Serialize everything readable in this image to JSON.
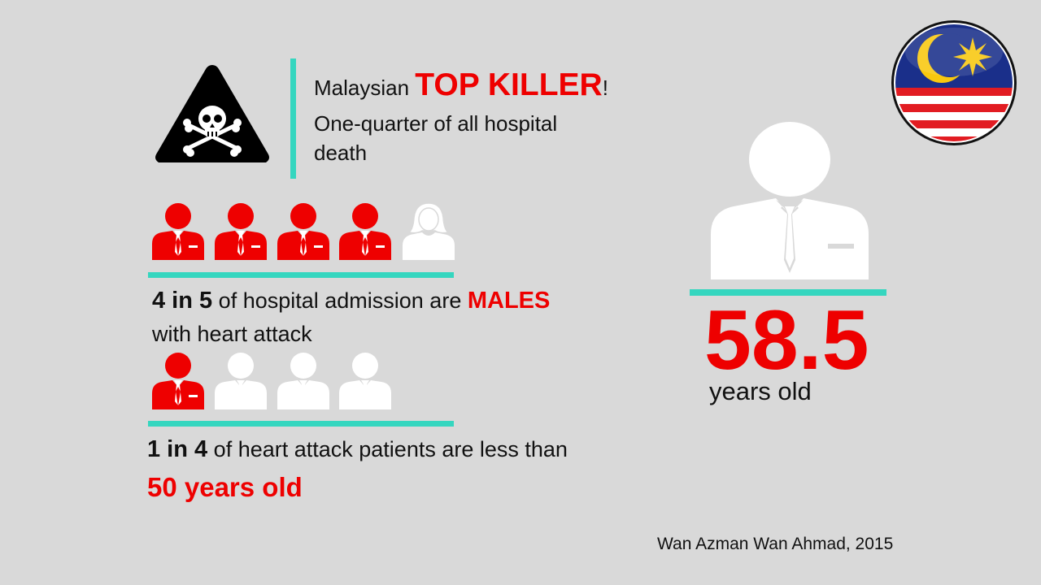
{
  "header": {
    "prefix": "Malaysian",
    "highlight": "TOP KILLER",
    "suffix": "!",
    "line2": "One-quarter of all hospital",
    "line3": "death"
  },
  "stat_males": {
    "number": "4 in 5",
    "text_before_highlight": "of hospital admission are",
    "highlight": "MALES",
    "line2": "with heart attack",
    "highlighted_count": 4,
    "total_count": 5
  },
  "stat_young": {
    "number": "1 in 4",
    "text": "of heart attack patients are less than",
    "highlight": "50 years old",
    "highlighted_count": 1,
    "total_count": 4
  },
  "average_age": {
    "value": "58.5",
    "unit": "years old"
  },
  "credit": "Wan Azman Wan Ahmad, 2015",
  "colors": {
    "accent_red": "#ee0000",
    "accent_teal": "#35d6bf",
    "background": "#d9d9d9",
    "icon_white": "#ffffff"
  },
  "icons": {
    "warning": "skull-crossbones-warning-icon",
    "male": "businessman-icon",
    "female": "woman-icon",
    "flag": "malaysia-flag-icon"
  }
}
